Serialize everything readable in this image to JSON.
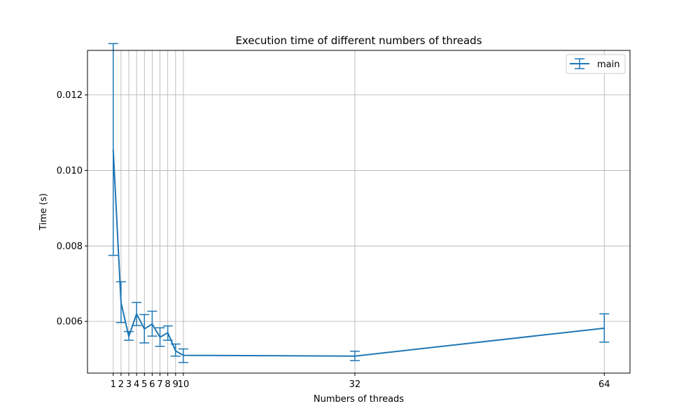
{
  "chart_data": {
    "type": "line",
    "title": "Execution time of different numbers of threads",
    "xlabel": "Numbers of threads",
    "ylabel": "Time (s)",
    "xticks": [
      1,
      2,
      3,
      4,
      5,
      6,
      7,
      8,
      9,
      10,
      32,
      64
    ],
    "xlim": [
      -2.3,
      67.3
    ],
    "yticks": [
      0.006,
      0.008,
      0.01,
      0.012
    ],
    "ytick_labels": [
      "0.006",
      "0.008",
      "0.010",
      "0.012"
    ],
    "ylim": [
      0.00463,
      0.01318
    ],
    "grid": true,
    "legend": "top-right",
    "series": [
      {
        "name": "main",
        "color": "#1f77b4",
        "x": [
          1,
          2,
          3,
          4,
          5,
          6,
          7,
          8,
          9,
          10,
          32,
          64
        ],
        "y": [
          0.01055,
          0.0065,
          0.0056,
          0.0062,
          0.0058,
          0.00593,
          0.00558,
          0.0057,
          0.00522,
          0.0051,
          0.00508,
          0.00582
        ],
        "yerr_low": [
          0.00775,
          0.00597,
          0.0055,
          0.00589,
          0.00543,
          0.00561,
          0.00534,
          0.0055,
          0.00508,
          0.00491,
          0.00496,
          0.00545
        ],
        "yerr_high": [
          0.01336,
          0.00705,
          0.00573,
          0.0065,
          0.00618,
          0.00627,
          0.00583,
          0.00588,
          0.0054,
          0.00527,
          0.00521,
          0.0062
        ]
      }
    ]
  }
}
